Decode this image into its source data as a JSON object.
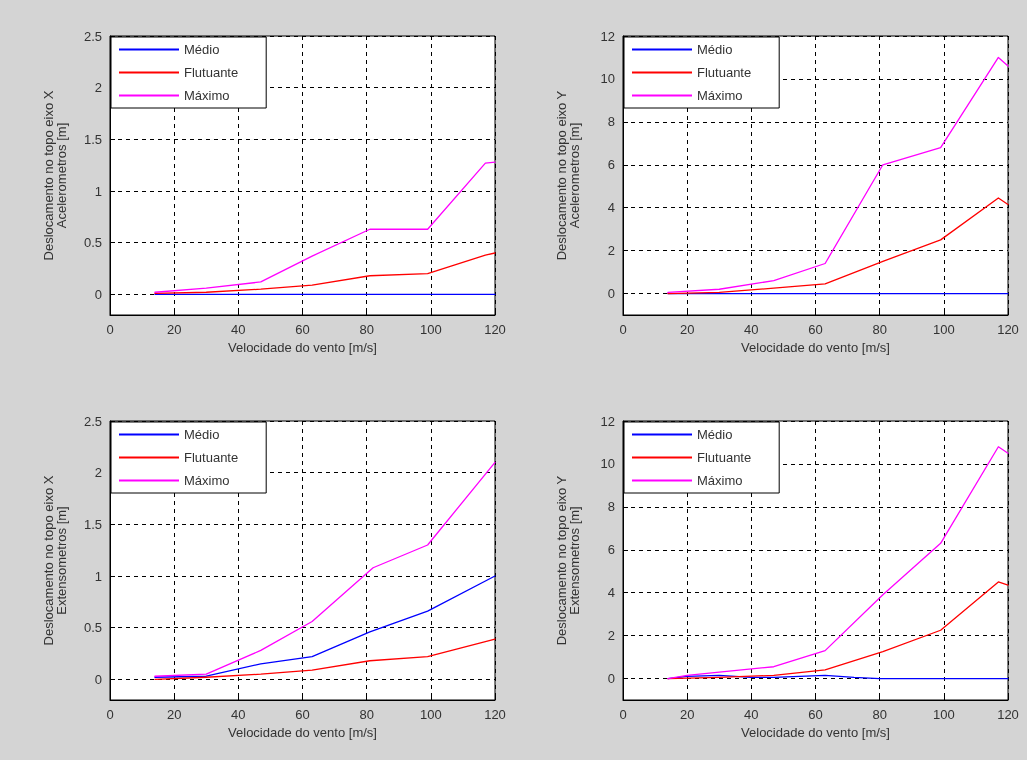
{
  "chart_data": [
    {
      "type": "line",
      "xlabel": "Velocidade do vento [m/s]",
      "ylabel": "Deslocamento no topo eixo X\nAcelerometros [m]",
      "xlim": [
        0,
        120
      ],
      "xticks": [
        0,
        20,
        40,
        60,
        80,
        100,
        120
      ],
      "ylim": [
        -0.2,
        2.5
      ],
      "yticks": [
        0,
        0.5,
        1,
        1.5,
        2,
        2.5
      ],
      "grid": true,
      "legend": "top left",
      "line_style": "solid",
      "marker": "none",
      "series": [
        {
          "name": "Médio",
          "color": "#0000ff",
          "x": [
            14,
            30,
            47,
            63,
            81,
            99,
            117,
            120
          ],
          "values": [
            0,
            0,
            0,
            0,
            0,
            0,
            0,
            0
          ]
        },
        {
          "name": "Flutuante",
          "color": "#ff0000",
          "x": [
            14,
            30,
            47,
            63,
            81,
            99,
            117,
            120
          ],
          "values": [
            0.01,
            0.02,
            0.05,
            0.09,
            0.18,
            0.2,
            0.38,
            0.4
          ]
        },
        {
          "name": "Máximo",
          "color": "#ff00ff",
          "x": [
            14,
            30,
            47,
            63,
            81,
            99,
            117,
            120
          ],
          "values": [
            0.02,
            0.06,
            0.12,
            0.37,
            0.63,
            0.63,
            1.27,
            1.28
          ]
        }
      ]
    },
    {
      "type": "line",
      "xlabel": "Velocidade do vento [m/s]",
      "ylabel": "Deslocamento no topo eixo Y\nAcelerometros [m]",
      "xlim": [
        0,
        120
      ],
      "xticks": [
        0,
        20,
        40,
        60,
        80,
        100,
        120
      ],
      "ylim": [
        -1,
        12
      ],
      "yticks": [
        0,
        2,
        4,
        6,
        8,
        10,
        12
      ],
      "grid": true,
      "legend": "top left",
      "line_style": "solid",
      "marker": "none",
      "series": [
        {
          "name": "Médio",
          "color": "#0000ff",
          "x": [
            14,
            30,
            47,
            63,
            81,
            99,
            117,
            120
          ],
          "values": [
            0,
            0,
            0,
            0,
            0,
            0,
            0,
            0
          ]
        },
        {
          "name": "Flutuante",
          "color": "#ff0000",
          "x": [
            14,
            30,
            47,
            63,
            81,
            99,
            117,
            120
          ],
          "values": [
            0,
            0.05,
            0.25,
            0.45,
            1.5,
            2.5,
            4.45,
            4.15
          ]
        },
        {
          "name": "Máximo",
          "color": "#ff00ff",
          "x": [
            14,
            30,
            47,
            63,
            81,
            99,
            117,
            120
          ],
          "values": [
            0.05,
            0.2,
            0.6,
            1.4,
            6,
            6.8,
            11,
            10.6
          ]
        }
      ]
    },
    {
      "type": "line",
      "xlabel": "Velocidade do vento [m/s]",
      "ylabel": "Deslocamento no topo eixo X\nExtensometros [m]",
      "xlim": [
        0,
        120
      ],
      "xticks": [
        0,
        20,
        40,
        60,
        80,
        100,
        120
      ],
      "ylim": [
        -0.2,
        2.5
      ],
      "yticks": [
        0,
        0.5,
        1,
        1.5,
        2,
        2.5
      ],
      "grid": true,
      "legend": "top left",
      "line_style": "solid",
      "marker": "none",
      "series": [
        {
          "name": "Médio",
          "color": "#0000ff",
          "x": [
            14,
            30,
            47,
            63,
            81,
            99,
            120
          ],
          "values": [
            0.02,
            0.03,
            0.15,
            0.22,
            0.46,
            0.66,
            1.0
          ]
        },
        {
          "name": "Flutuante",
          "color": "#ff0000",
          "x": [
            14,
            30,
            47,
            63,
            81,
            99,
            120
          ],
          "values": [
            0,
            0.02,
            0.05,
            0.09,
            0.18,
            0.22,
            0.39
          ]
        },
        {
          "name": "Máximo",
          "color": "#ff00ff",
          "x": [
            14,
            30,
            47,
            63,
            82,
            99,
            120
          ],
          "values": [
            0.03,
            0.05,
            0.28,
            0.56,
            1.08,
            1.3,
            2.1
          ]
        }
      ]
    },
    {
      "type": "line",
      "xlabel": "Velocidade do vento [m/s]",
      "ylabel": "Deslocamento no topo eixo Y\nExtensometros [m]",
      "xlim": [
        0,
        120
      ],
      "xticks": [
        0,
        20,
        40,
        60,
        80,
        100,
        120
      ],
      "ylim": [
        -1,
        12
      ],
      "yticks": [
        0,
        2,
        4,
        6,
        8,
        10,
        12
      ],
      "grid": true,
      "legend": "top left",
      "line_style": "solid",
      "marker": "none",
      "series": [
        {
          "name": "Médio",
          "color": "#0000ff",
          "x": [
            14,
            20,
            30,
            40,
            47,
            63,
            72,
            80,
            120
          ],
          "values": [
            0,
            0.1,
            0.15,
            0.05,
            0.05,
            0.15,
            0.05,
            0,
            0
          ]
        },
        {
          "name": "Flutuante",
          "color": "#ff0000",
          "x": [
            14,
            30,
            47,
            63,
            81,
            99,
            117,
            120
          ],
          "values": [
            0,
            0.05,
            0.15,
            0.4,
            1.25,
            2.25,
            4.5,
            4.35
          ]
        },
        {
          "name": "Máximo",
          "color": "#ff00ff",
          "x": [
            14,
            20,
            30,
            47,
            63,
            81,
            99,
            117,
            120
          ],
          "values": [
            0,
            0.15,
            0.3,
            0.55,
            1.3,
            3.9,
            6.3,
            10.8,
            10.5
          ]
        }
      ]
    }
  ]
}
